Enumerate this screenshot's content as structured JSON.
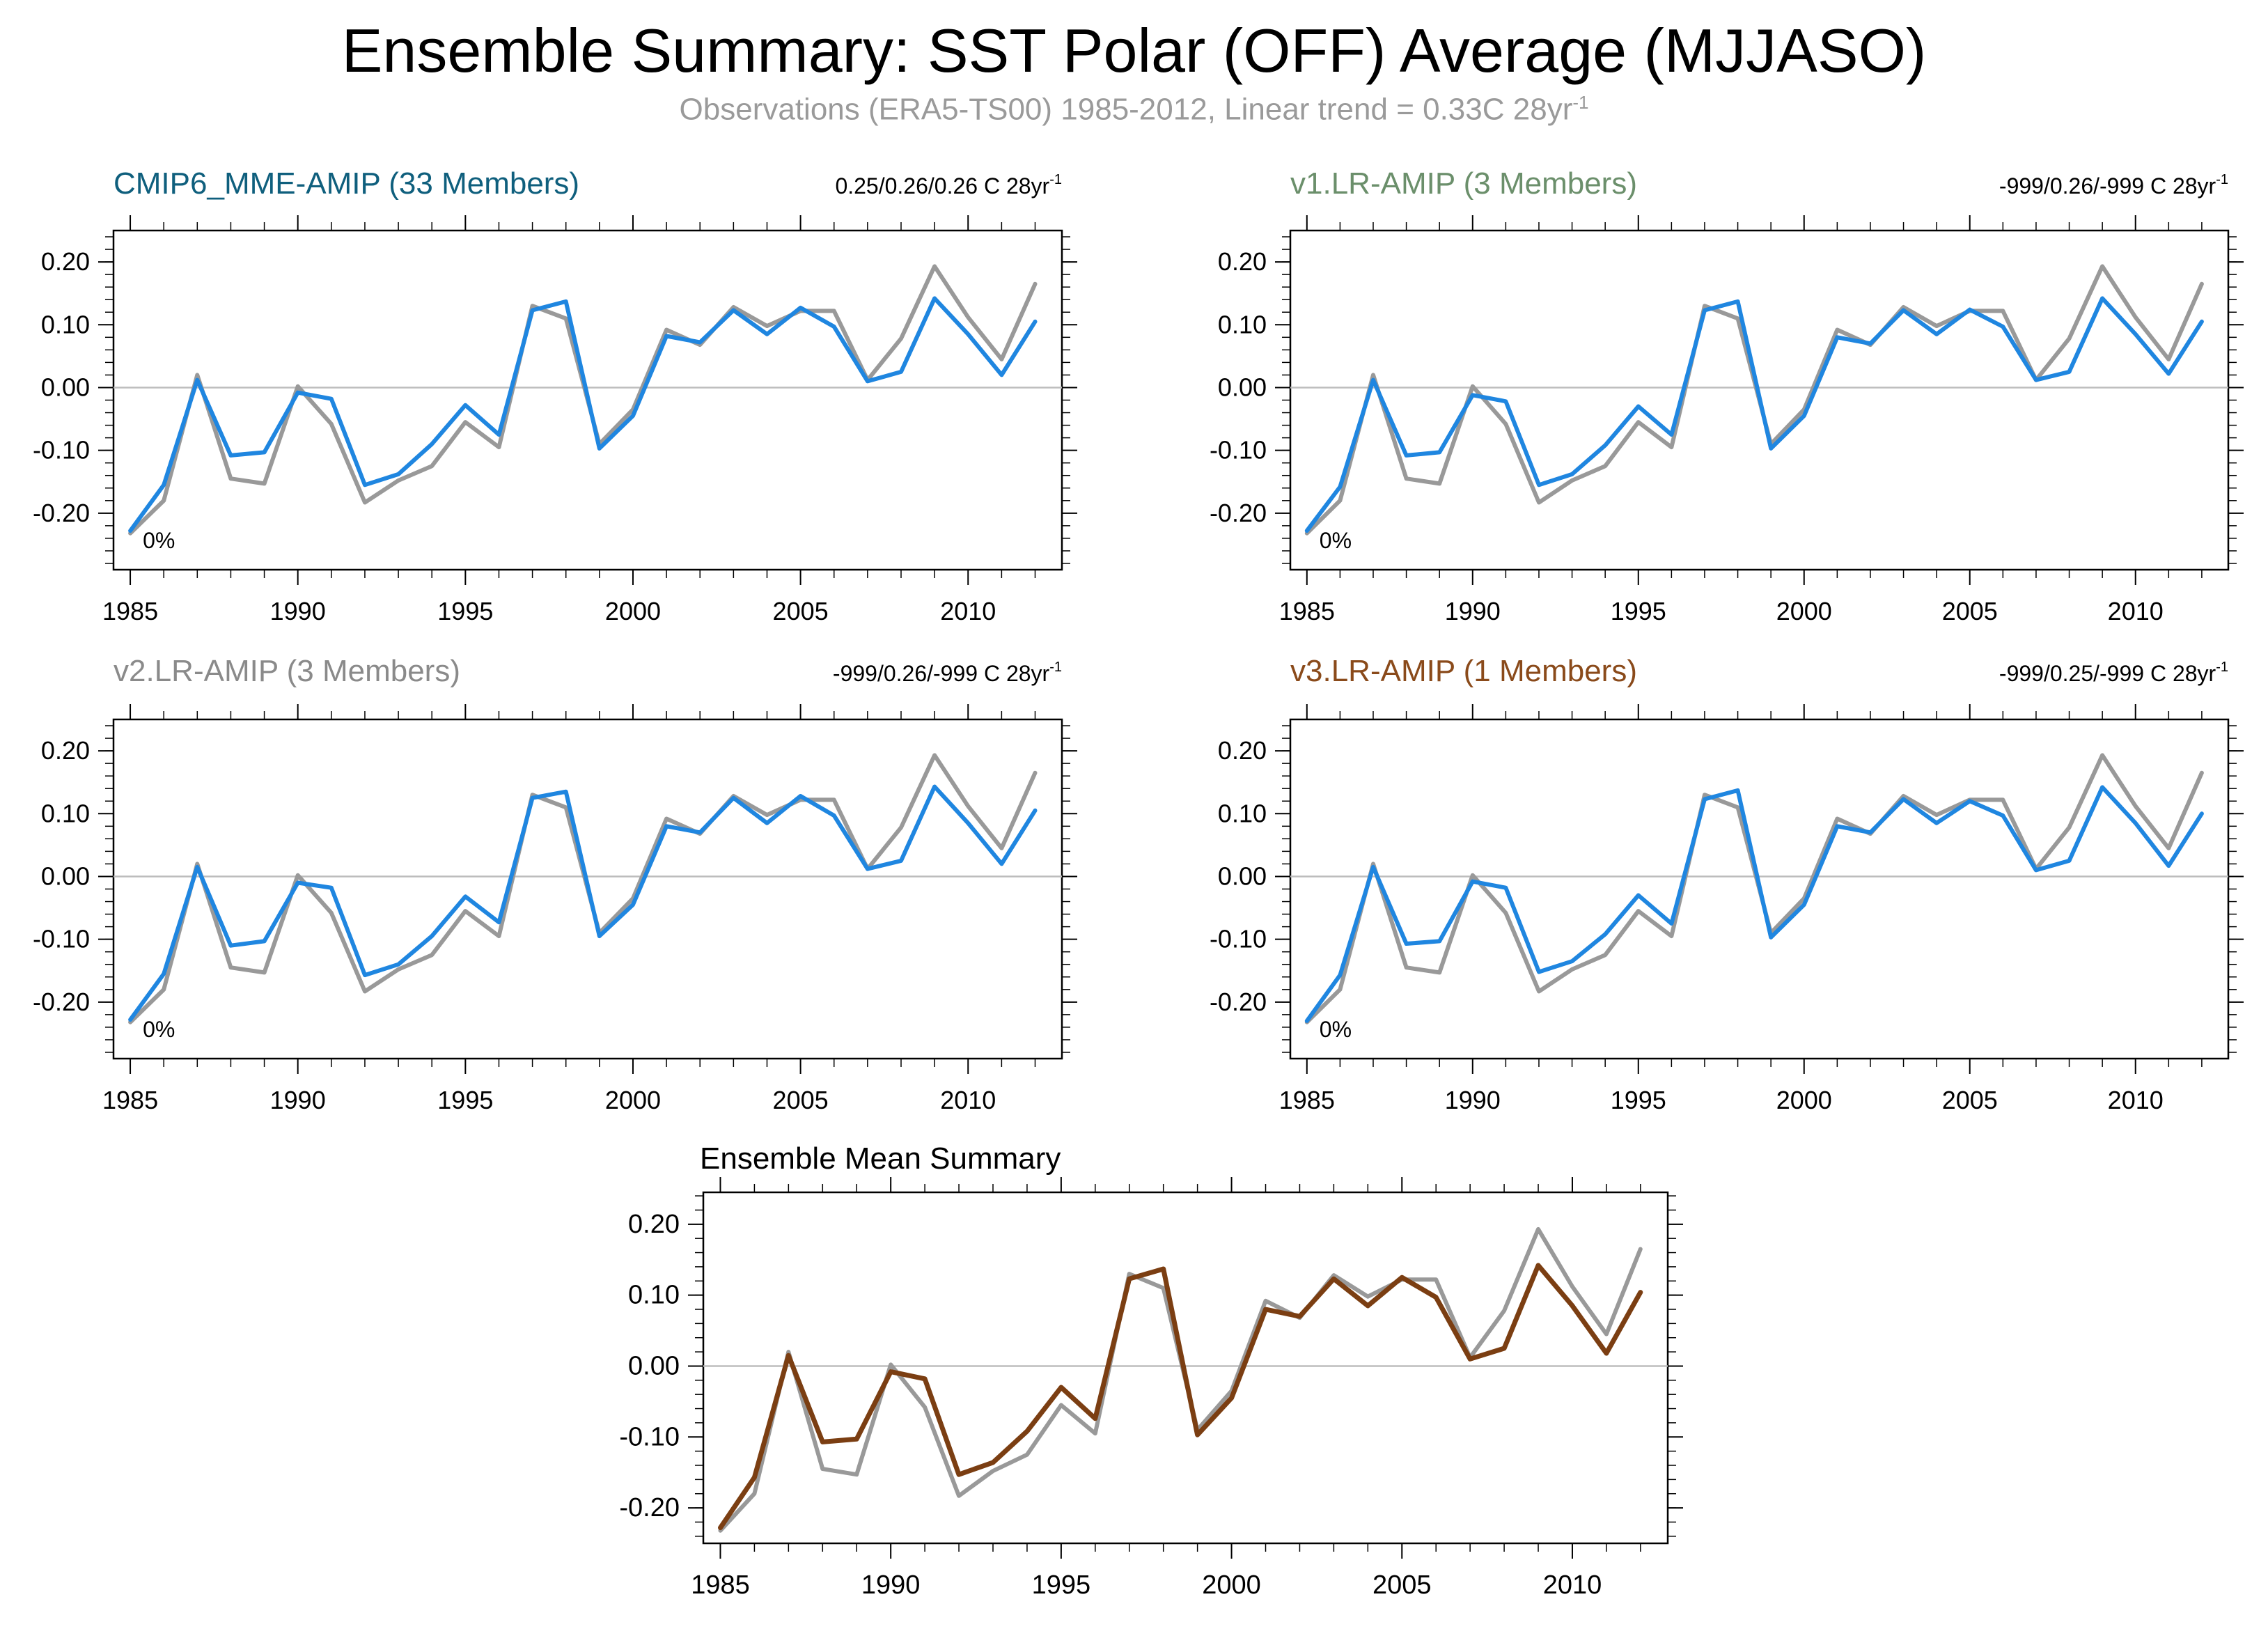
{
  "header": {
    "title": "Ensemble Summary: SST Polar (OFF) Average (MJJASO)",
    "subtitle_main": "Observations (ERA5-TS00) 1985-2012, Linear trend = 0.33C 28yr",
    "subtitle_sup": "-1"
  },
  "colors": {
    "observations": "#999999",
    "model": "#1f86e0",
    "ensemble_mean": "#7b3e12",
    "zero_line": "#bdbdbd"
  },
  "chart_data": [
    {
      "type": "line",
      "title": "CMIP6_MME-AMIP (33 Members)",
      "title_color": "#0f5f7d",
      "trend_label": "0.25/0.26/0.26 C 28yr",
      "trend_sup": "-1",
      "pct_label": "0%",
      "x": [
        1985,
        1986,
        1987,
        1988,
        1989,
        1990,
        1991,
        1992,
        1993,
        1994,
        1995,
        1996,
        1997,
        1998,
        1999,
        2000,
        2001,
        2002,
        2003,
        2004,
        2005,
        2006,
        2007,
        2008,
        2009,
        2010,
        2011,
        2012
      ],
      "xticks": [
        1985,
        1990,
        1995,
        2000,
        2005,
        2010
      ],
      "xticklabels": [
        "1985",
        "1990",
        "1995",
        "2000",
        "2005",
        "2010"
      ],
      "yticks": [
        -0.2,
        -0.1,
        0,
        0.1,
        0.2
      ],
      "yticklabels": [
        "-0.20",
        "-0.10",
        "0.00",
        "0.10",
        "0.20"
      ],
      "xlim": [
        1984.5,
        2012.8
      ],
      "ylim": [
        -0.29,
        0.25
      ],
      "series": [
        {
          "role": "obs",
          "values": [
            -0.232,
            -0.18,
            0.02,
            -0.145,
            -0.153,
            0.002,
            -0.058,
            -0.183,
            -0.148,
            -0.125,
            -0.055,
            -0.095,
            0.13,
            0.11,
            -0.09,
            -0.035,
            0.092,
            0.068,
            0.128,
            0.098,
            0.122,
            0.122,
            0.012,
            0.078,
            0.193,
            0.112,
            0.045,
            0.165
          ]
        },
        {
          "role": "model",
          "values": [
            -0.228,
            -0.155,
            0.012,
            -0.108,
            -0.103,
            -0.008,
            -0.018,
            -0.155,
            -0.138,
            -0.09,
            -0.028,
            -0.075,
            0.123,
            0.137,
            -0.097,
            -0.045,
            0.082,
            0.072,
            0.123,
            0.085,
            0.127,
            0.097,
            0.01,
            0.025,
            0.142,
            0.085,
            0.02,
            0.105
          ]
        }
      ]
    },
    {
      "type": "line",
      "title": "v1.LR-AMIP (3 Members)",
      "title_color": "#6b8f6b",
      "trend_label": "-999/0.26/-999 C 28yr",
      "trend_sup": "-1",
      "pct_label": "0%",
      "x": [
        1985,
        1986,
        1987,
        1988,
        1989,
        1990,
        1991,
        1992,
        1993,
        1994,
        1995,
        1996,
        1997,
        1998,
        1999,
        2000,
        2001,
        2002,
        2003,
        2004,
        2005,
        2006,
        2007,
        2008,
        2009,
        2010,
        2011,
        2012
      ],
      "xticks": [
        1985,
        1990,
        1995,
        2000,
        2005,
        2010
      ],
      "xticklabels": [
        "1985",
        "1990",
        "1995",
        "2000",
        "2005",
        "2010"
      ],
      "yticks": [
        -0.2,
        -0.1,
        0,
        0.1,
        0.2
      ],
      "yticklabels": [
        "-0.20",
        "-0.10",
        "0.00",
        "0.10",
        "0.20"
      ],
      "xlim": [
        1984.5,
        2012.8
      ],
      "ylim": [
        -0.29,
        0.25
      ],
      "series": [
        {
          "role": "obs",
          "values": [
            -0.232,
            -0.18,
            0.02,
            -0.145,
            -0.153,
            0.002,
            -0.058,
            -0.183,
            -0.148,
            -0.125,
            -0.055,
            -0.095,
            0.13,
            0.11,
            -0.09,
            -0.035,
            0.092,
            0.068,
            0.128,
            0.098,
            0.122,
            0.122,
            0.012,
            0.078,
            0.193,
            0.112,
            0.045,
            0.165
          ]
        },
        {
          "role": "model",
          "values": [
            -0.228,
            -0.158,
            0.012,
            -0.108,
            -0.103,
            -0.012,
            -0.022,
            -0.155,
            -0.138,
            -0.092,
            -0.03,
            -0.075,
            0.123,
            0.137,
            -0.097,
            -0.045,
            0.08,
            0.07,
            0.123,
            0.085,
            0.124,
            0.097,
            0.012,
            0.025,
            0.142,
            0.085,
            0.022,
            0.105
          ]
        }
      ]
    },
    {
      "type": "line",
      "title": "v2.LR-AMIP (3 Members)",
      "title_color": "#8a8a8a",
      "trend_label": "-999/0.26/-999 C 28yr",
      "trend_sup": "-1",
      "pct_label": "0%",
      "x": [
        1985,
        1986,
        1987,
        1988,
        1989,
        1990,
        1991,
        1992,
        1993,
        1994,
        1995,
        1996,
        1997,
        1998,
        1999,
        2000,
        2001,
        2002,
        2003,
        2004,
        2005,
        2006,
        2007,
        2008,
        2009,
        2010,
        2011,
        2012
      ],
      "xticks": [
        1985,
        1990,
        1995,
        2000,
        2005,
        2010
      ],
      "xticklabels": [
        "1985",
        "1990",
        "1995",
        "2000",
        "2005",
        "2010"
      ],
      "yticks": [
        -0.2,
        -0.1,
        0,
        0.1,
        0.2
      ],
      "yticklabels": [
        "-0.20",
        "-0.10",
        "0.00",
        "0.10",
        "0.20"
      ],
      "xlim": [
        1984.5,
        2012.8
      ],
      "ylim": [
        -0.29,
        0.25
      ],
      "series": [
        {
          "role": "obs",
          "values": [
            -0.232,
            -0.18,
            0.02,
            -0.145,
            -0.153,
            0.002,
            -0.058,
            -0.183,
            -0.148,
            -0.125,
            -0.055,
            -0.095,
            0.13,
            0.11,
            -0.09,
            -0.035,
            0.092,
            0.068,
            0.128,
            0.098,
            0.122,
            0.122,
            0.012,
            0.078,
            0.193,
            0.112,
            0.045,
            0.165
          ]
        },
        {
          "role": "model",
          "values": [
            -0.228,
            -0.155,
            0.015,
            -0.11,
            -0.103,
            -0.01,
            -0.018,
            -0.157,
            -0.14,
            -0.095,
            -0.032,
            -0.073,
            0.125,
            0.135,
            -0.095,
            -0.045,
            0.08,
            0.07,
            0.125,
            0.085,
            0.128,
            0.097,
            0.012,
            0.025,
            0.143,
            0.085,
            0.02,
            0.105
          ]
        }
      ]
    },
    {
      "type": "line",
      "title": "v3.LR-AMIP (1 Members)",
      "title_color": "#8a4a1a",
      "trend_label": "-999/0.25/-999 C 28yr",
      "trend_sup": "-1",
      "pct_label": "0%",
      "x": [
        1985,
        1986,
        1987,
        1988,
        1989,
        1990,
        1991,
        1992,
        1993,
        1994,
        1995,
        1996,
        1997,
        1998,
        1999,
        2000,
        2001,
        2002,
        2003,
        2004,
        2005,
        2006,
        2007,
        2008,
        2009,
        2010,
        2011,
        2012
      ],
      "xticks": [
        1985,
        1990,
        1995,
        2000,
        2005,
        2010
      ],
      "xticklabels": [
        "1985",
        "1990",
        "1995",
        "2000",
        "2005",
        "2010"
      ],
      "yticks": [
        -0.2,
        -0.1,
        0,
        0.1,
        0.2
      ],
      "yticklabels": [
        "-0.20",
        "-0.10",
        "0.00",
        "0.10",
        "0.20"
      ],
      "xlim": [
        1984.5,
        2012.8
      ],
      "ylim": [
        -0.29,
        0.25
      ],
      "series": [
        {
          "role": "obs",
          "values": [
            -0.232,
            -0.18,
            0.02,
            -0.145,
            -0.153,
            0.002,
            -0.058,
            -0.183,
            -0.148,
            -0.125,
            -0.055,
            -0.095,
            0.13,
            0.11,
            -0.09,
            -0.035,
            0.092,
            0.068,
            0.128,
            0.098,
            0.122,
            0.122,
            0.012,
            0.078,
            0.193,
            0.112,
            0.045,
            0.165
          ]
        },
        {
          "role": "model",
          "values": [
            -0.23,
            -0.157,
            0.015,
            -0.107,
            -0.103,
            -0.008,
            -0.018,
            -0.152,
            -0.135,
            -0.092,
            -0.03,
            -0.075,
            0.123,
            0.137,
            -0.097,
            -0.045,
            0.08,
            0.07,
            0.123,
            0.085,
            0.12,
            0.097,
            0.01,
            0.025,
            0.142,
            0.085,
            0.017,
            0.1
          ]
        }
      ]
    },
    {
      "type": "line",
      "title": "Ensemble Mean Summary",
      "title_color": "#000000",
      "x": [
        1985,
        1986,
        1987,
        1988,
        1989,
        1990,
        1991,
        1992,
        1993,
        1994,
        1995,
        1996,
        1997,
        1998,
        1999,
        2000,
        2001,
        2002,
        2003,
        2004,
        2005,
        2006,
        2007,
        2008,
        2009,
        2010,
        2011,
        2012
      ],
      "xticks": [
        1985,
        1990,
        1995,
        2000,
        2005,
        2010
      ],
      "xticklabels": [
        "1985",
        "1990",
        "1995",
        "2000",
        "2005",
        "2010"
      ],
      "yticks": [
        -0.2,
        -0.1,
        0,
        0.1,
        0.2
      ],
      "yticklabels": [
        "-0.20",
        "-0.10",
        "0.00",
        "0.10",
        "0.20"
      ],
      "xlim": [
        1984.5,
        2012.8
      ],
      "ylim": [
        -0.25,
        0.245
      ],
      "series": [
        {
          "role": "obs",
          "values": [
            -0.232,
            -0.18,
            0.02,
            -0.145,
            -0.153,
            0.002,
            -0.058,
            -0.183,
            -0.148,
            -0.125,
            -0.055,
            -0.095,
            0.13,
            0.11,
            -0.09,
            -0.035,
            0.092,
            0.068,
            0.128,
            0.098,
            0.122,
            0.122,
            0.012,
            0.078,
            0.193,
            0.112,
            0.045,
            0.165
          ]
        },
        {
          "role": "mean",
          "values": [
            -0.228,
            -0.157,
            0.015,
            -0.107,
            -0.103,
            -0.008,
            -0.018,
            -0.153,
            -0.136,
            -0.092,
            -0.03,
            -0.074,
            0.123,
            0.137,
            -0.097,
            -0.045,
            0.08,
            0.07,
            0.123,
            0.085,
            0.125,
            0.097,
            0.01,
            0.025,
            0.142,
            0.085,
            0.018,
            0.104
          ]
        }
      ]
    }
  ]
}
